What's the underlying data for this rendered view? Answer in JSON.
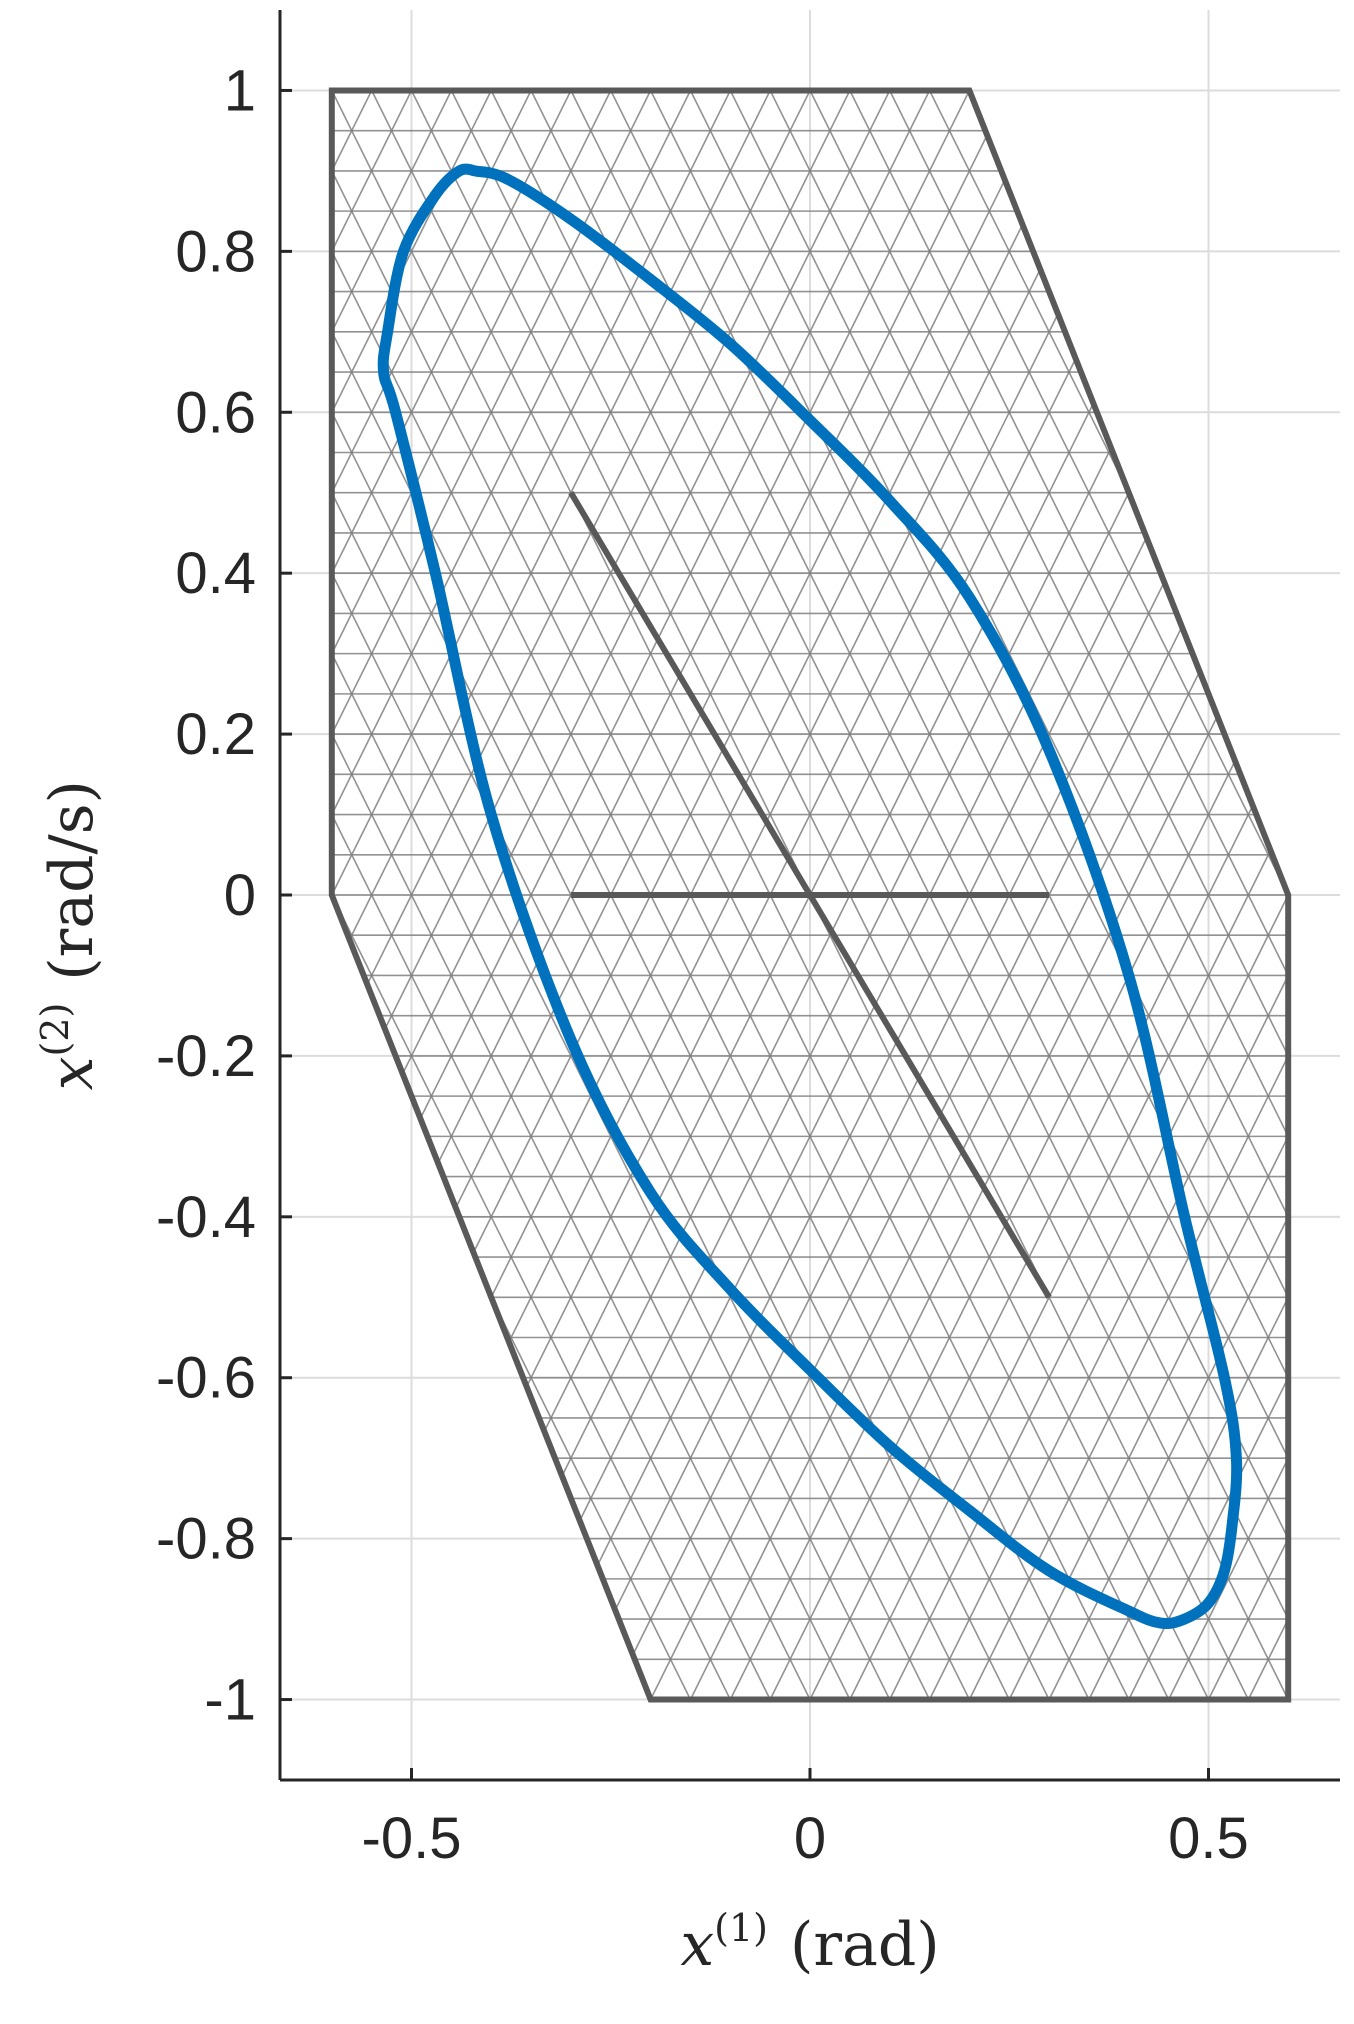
{
  "chart_data": {
    "type": "line",
    "title": "",
    "xlabel": {
      "symbol": "x",
      "superscript": "(1)",
      "unit": "(rad)"
    },
    "ylabel": {
      "symbol": "x",
      "superscript": "(2)",
      "unit": "(rad/s)"
    },
    "xlim": [
      -0.665,
      0.665
    ],
    "ylim": [
      -1.1,
      1.1
    ],
    "grid": true,
    "x_ticks": [
      -0.5,
      0,
      0.5
    ],
    "x_tick_labels": [
      "-0.5",
      "0",
      "0.5"
    ],
    "y_ticks": [
      1,
      0.8,
      0.6,
      0.4,
      0.2,
      0,
      -0.2,
      -0.4,
      -0.6,
      -0.8,
      -1
    ],
    "y_tick_labels": [
      "1",
      "0.8",
      "0.6",
      "0.4",
      "0.2",
      "0",
      "-0.2",
      "-0.4",
      "-0.6",
      "-0.8",
      "-1"
    ],
    "colors": {
      "limit_cycle": "#0072BD",
      "region_boundary": "#595959",
      "mesh": "#7f7f7f",
      "grid": "#dcdcdc",
      "axis": "#262626"
    },
    "series": [
      {
        "kind": "region-boundary",
        "x": [
          -0.6,
          0.2,
          0.6,
          0.6,
          -0.2,
          -0.6,
          -0.6
        ],
        "y": [
          1,
          1,
          0,
          -1,
          -1,
          0,
          1
        ]
      },
      {
        "kind": "segment",
        "x": [
          -0.3,
          0.3
        ],
        "y": [
          0.5,
          -0.5
        ]
      },
      {
        "kind": "segment",
        "x": [
          -0.3,
          0.3
        ],
        "y": [
          0,
          0
        ]
      },
      {
        "kind": "limit-cycle",
        "x": [
          -0.42,
          -0.38,
          -0.3,
          -0.2,
          -0.1,
          0.0,
          0.1,
          0.2,
          0.3,
          0.4,
          0.47,
          0.52,
          0.535,
          0.53,
          0.52,
          0.5,
          0.47,
          0.44,
          0.4,
          0.3,
          0.2,
          0.1,
          0.0,
          -0.1,
          -0.2,
          -0.3,
          -0.4,
          -0.47,
          -0.52,
          -0.535,
          -0.53,
          -0.51,
          -0.47,
          -0.44,
          -0.42
        ],
        "y": [
          0.9,
          0.89,
          0.84,
          0.765,
          0.685,
          0.59,
          0.49,
          0.37,
          0.18,
          -0.1,
          -0.4,
          -0.6,
          -0.7,
          -0.78,
          -0.84,
          -0.88,
          -0.9,
          -0.905,
          -0.89,
          -0.84,
          -0.765,
          -0.685,
          -0.59,
          -0.49,
          -0.37,
          -0.18,
          0.1,
          0.4,
          0.6,
          0.65,
          0.7,
          0.8,
          0.87,
          0.9,
          0.9
        ]
      }
    ],
    "mesh": {
      "description_omitted": true,
      "spacing_x": 0.05,
      "spacing_y": 0.05
    }
  }
}
